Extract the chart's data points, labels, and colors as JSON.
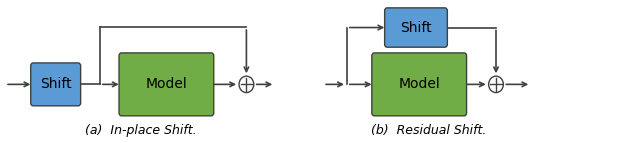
{
  "fig_width": 6.4,
  "fig_height": 1.43,
  "dpi": 100,
  "blue_color": "#5b9bd5",
  "green_color": "#70ad47",
  "box_edge_color": "#404040",
  "line_color": "#404040",
  "text_color": "#000000",
  "background": "#ffffff",
  "caption_a": "(a)  In-place Shift.",
  "caption_b": "(b)  Residual Shift.",
  "shift_label": "Shift",
  "model_label": "Model",
  "font_size_box": 10,
  "font_size_caption": 9,
  "xlim": [
    0,
    10
  ],
  "ylim": [
    0,
    2.0
  ]
}
